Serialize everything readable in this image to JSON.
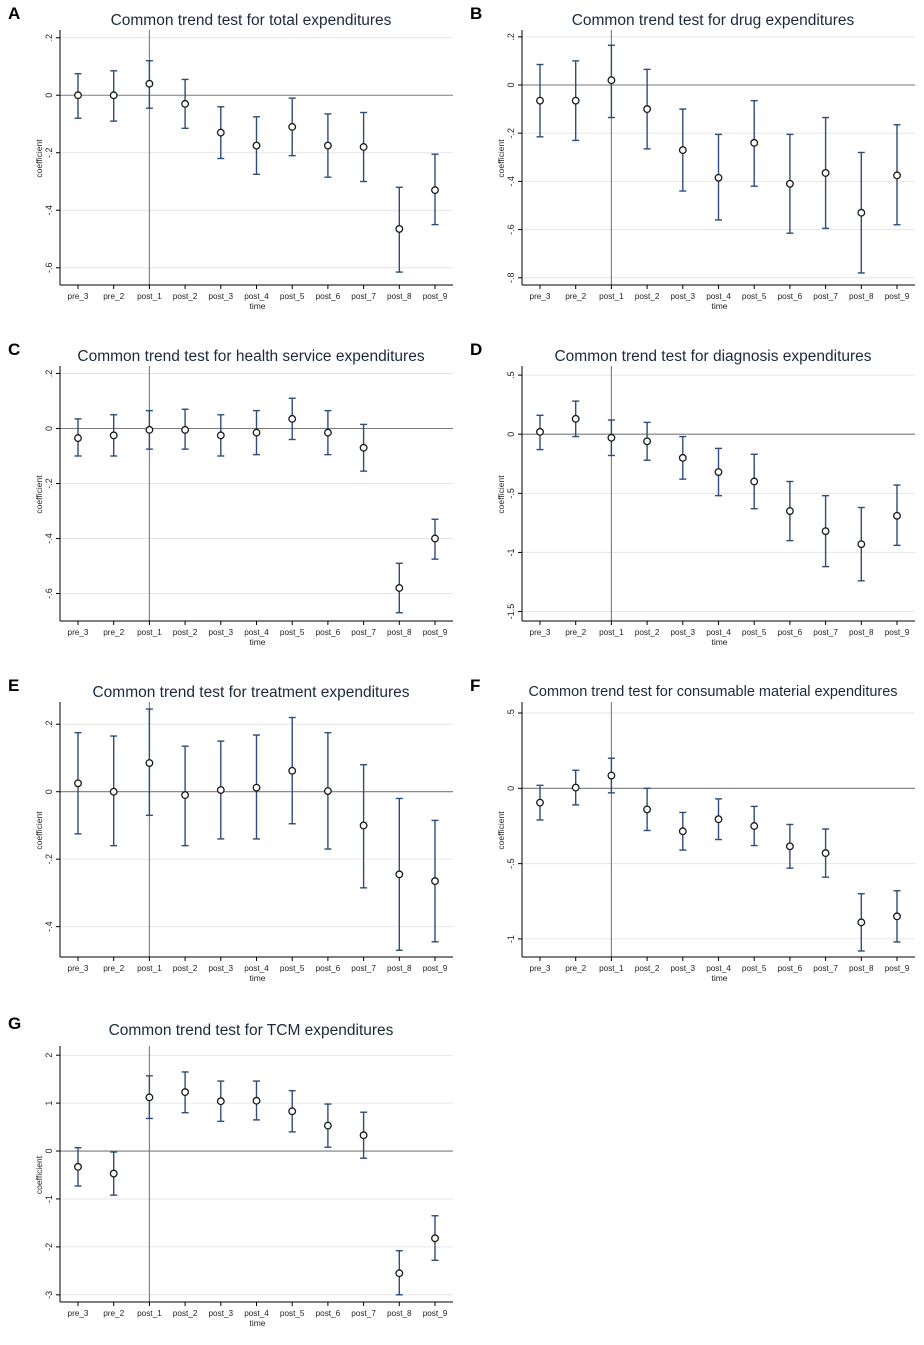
{
  "colors": {
    "ci": "#2e4d78",
    "axis": "#000000",
    "ref": "#7a7a7a",
    "grid": "#e6e6e6",
    "marker": "#1a1a1a"
  },
  "chart_data": [
    {
      "letter": "A",
      "type": "scatter",
      "title": "Common trend test for total expenditures",
      "xlabel": "time",
      "ylabel": "coefficient",
      "categories": [
        "pre_3",
        "pre_2",
        "post_1",
        "post_2",
        "post_3",
        "post_4",
        "post_5",
        "post_6",
        "post_7",
        "post_8",
        "post_9"
      ],
      "values": [
        0,
        0,
        0.04,
        -0.03,
        -0.13,
        -0.175,
        -0.11,
        -0.175,
        -0.18,
        -0.465,
        -0.33
      ],
      "ci_low": [
        -0.08,
        -0.09,
        -0.045,
        -0.115,
        -0.22,
        -0.275,
        -0.21,
        -0.285,
        -0.3,
        -0.615,
        -0.45
      ],
      "ci_high": [
        0.075,
        0.085,
        0.12,
        0.055,
        -0.04,
        -0.075,
        -0.01,
        -0.065,
        -0.06,
        -0.32,
        -0.205
      ],
      "ylim": [
        -0.66,
        0.22
      ],
      "yticks": [
        0.2,
        0,
        -0.2,
        -0.4,
        -0.6
      ],
      "ytick_labels": [
        ".2",
        "0",
        "-.2",
        "-.4",
        "-.6"
      ],
      "grid": true
    },
    {
      "letter": "B",
      "type": "scatter",
      "title": "Common trend test for drug expenditures",
      "xlabel": "time",
      "ylabel": "coefficient",
      "categories": [
        "pre_3",
        "pre_2",
        "post_1",
        "post_2",
        "post_3",
        "post_4",
        "post_5",
        "post_6",
        "post_7",
        "post_8",
        "post_9"
      ],
      "values": [
        -0.065,
        -0.065,
        0.02,
        -0.1,
        -0.27,
        -0.385,
        -0.24,
        -0.41,
        -0.365,
        -0.53,
        -0.375
      ],
      "ci_low": [
        -0.215,
        -0.23,
        -0.135,
        -0.265,
        -0.44,
        -0.56,
        -0.42,
        -0.615,
        -0.595,
        -0.78,
        -0.58
      ],
      "ci_high": [
        0.085,
        0.1,
        0.165,
        0.065,
        -0.1,
        -0.205,
        -0.065,
        -0.205,
        -0.135,
        -0.28,
        -0.165
      ],
      "ylim": [
        -0.83,
        0.22
      ],
      "yticks": [
        0.2,
        0,
        -0.2,
        -0.4,
        -0.6,
        -0.8
      ],
      "ytick_labels": [
        ".2",
        "0",
        "-.2",
        "-.4",
        "-.6",
        "-.8"
      ],
      "grid": true
    },
    {
      "letter": "C",
      "type": "scatter",
      "title": "Common trend test for health service expenditures",
      "xlabel": "time",
      "ylabel": "coefficient",
      "categories": [
        "pre_3",
        "pre_2",
        "post_1",
        "post_2",
        "post_3",
        "post_4",
        "post_5",
        "post_6",
        "post_7",
        "post_8",
        "post_9"
      ],
      "values": [
        -0.035,
        -0.025,
        -0.005,
        -0.005,
        -0.025,
        -0.015,
        0.035,
        -0.015,
        -0.07,
        -0.58,
        -0.4
      ],
      "ci_low": [
        -0.1,
        -0.1,
        -0.075,
        -0.075,
        -0.1,
        -0.095,
        -0.04,
        -0.095,
        -0.155,
        -0.67,
        -0.475
      ],
      "ci_high": [
        0.035,
        0.05,
        0.065,
        0.07,
        0.05,
        0.065,
        0.11,
        0.065,
        0.015,
        -0.49,
        -0.33
      ],
      "ylim": [
        -0.7,
        0.22
      ],
      "yticks": [
        0.2,
        0,
        -0.2,
        -0.4,
        -0.6
      ],
      "ytick_labels": [
        ".2",
        "0",
        "-.2",
        "-.4",
        "-.6"
      ],
      "grid": true
    },
    {
      "letter": "D",
      "type": "scatter",
      "title": "Common trend test for diagnosis expenditures",
      "xlabel": "time",
      "ylabel": "coefficient",
      "categories": [
        "pre_3",
        "pre_2",
        "post_1",
        "post_2",
        "post_3",
        "post_4",
        "post_5",
        "post_6",
        "post_7",
        "post_8",
        "post_9"
      ],
      "values": [
        0.02,
        0.13,
        -0.03,
        -0.06,
        -0.2,
        -0.32,
        -0.4,
        -0.65,
        -0.82,
        -0.93,
        -0.69
      ],
      "ci_low": [
        -0.13,
        -0.02,
        -0.18,
        -0.22,
        -0.38,
        -0.52,
        -0.63,
        -0.9,
        -1.12,
        -1.24,
        -0.94
      ],
      "ci_high": [
        0.16,
        0.28,
        0.12,
        0.1,
        -0.02,
        -0.12,
        -0.17,
        -0.4,
        -0.52,
        -0.62,
        -0.43
      ],
      "ylim": [
        -1.58,
        0.56
      ],
      "yticks": [
        0.5,
        0,
        -0.5,
        -1,
        -1.5
      ],
      "ytick_labels": [
        ".5",
        "0",
        "-.5",
        "-1",
        "-1.5"
      ],
      "grid": true
    },
    {
      "letter": "E",
      "type": "scatter",
      "title": "Common trend test for treatment expenditures",
      "xlabel": "time",
      "ylabel": "coefficient",
      "categories": [
        "pre_3",
        "pre_2",
        "post_1",
        "post_2",
        "post_3",
        "post_4",
        "post_5",
        "post_6",
        "post_7",
        "post_8",
        "post_9"
      ],
      "values": [
        0.025,
        0.0,
        0.085,
        -0.01,
        0.005,
        0.012,
        0.062,
        0.002,
        -0.1,
        -0.245,
        -0.265
      ],
      "ci_low": [
        -0.125,
        -0.16,
        -0.07,
        -0.16,
        -0.14,
        -0.14,
        -0.095,
        -0.17,
        -0.285,
        -0.47,
        -0.445
      ],
      "ci_high": [
        0.175,
        0.165,
        0.245,
        0.135,
        0.15,
        0.168,
        0.22,
        0.175,
        0.08,
        -0.02,
        -0.085
      ],
      "ylim": [
        -0.49,
        0.26
      ],
      "yticks": [
        0.2,
        0,
        -0.2,
        -0.4
      ],
      "ytick_labels": [
        ".2",
        "0",
        "-.2",
        "-.4"
      ],
      "grid": true
    },
    {
      "letter": "F",
      "type": "scatter",
      "title": "Common trend test for consumable material expenditures",
      "xlabel": "time",
      "ylabel": "coefficient",
      "categories": [
        "pre_3",
        "pre_2",
        "post_1",
        "post_2",
        "post_3",
        "post_4",
        "post_5",
        "post_6",
        "post_7",
        "post_8",
        "post_9"
      ],
      "values": [
        -0.095,
        0.005,
        0.085,
        -0.14,
        -0.285,
        -0.205,
        -0.25,
        -0.385,
        -0.43,
        -0.89,
        -0.85
      ],
      "ci_low": [
        -0.21,
        -0.11,
        -0.03,
        -0.28,
        -0.41,
        -0.34,
        -0.38,
        -0.53,
        -0.59,
        -1.08,
        -1.02
      ],
      "ci_high": [
        0.02,
        0.12,
        0.2,
        0.0,
        -0.16,
        -0.07,
        -0.12,
        -0.24,
        -0.27,
        -0.7,
        -0.68
      ],
      "ylim": [
        -1.12,
        0.56
      ],
      "yticks": [
        0.5,
        0,
        -0.5,
        -1
      ],
      "ytick_labels": [
        ".5",
        "0",
        "-.5",
        "-1"
      ],
      "grid": true
    },
    {
      "letter": "G",
      "type": "scatter",
      "title": "Common trend test for TCM expenditures",
      "xlabel": "time",
      "ylabel": "coefficient",
      "categories": [
        "pre_3",
        "pre_2",
        "post_1",
        "post_2",
        "post_3",
        "post_4",
        "post_5",
        "post_6",
        "post_7",
        "post_8",
        "post_9"
      ],
      "values": [
        -0.33,
        -0.47,
        1.12,
        1.23,
        1.04,
        1.05,
        0.83,
        0.53,
        0.33,
        -2.55,
        -1.82
      ],
      "ci_low": [
        -0.73,
        -0.92,
        0.68,
        0.8,
        0.62,
        0.65,
        0.4,
        0.08,
        -0.15,
        -3.0,
        -2.28
      ],
      "ci_high": [
        0.07,
        -0.02,
        1.57,
        1.65,
        1.46,
        1.46,
        1.26,
        0.98,
        0.81,
        -2.08,
        -1.35
      ],
      "ylim": [
        -3.15,
        2.15
      ],
      "yticks": [
        2,
        1,
        0,
        -1,
        -2,
        -3
      ],
      "ytick_labels": [
        "2",
        "1",
        "0",
        "-1",
        "-2",
        "-3"
      ],
      "grid": true
    }
  ]
}
